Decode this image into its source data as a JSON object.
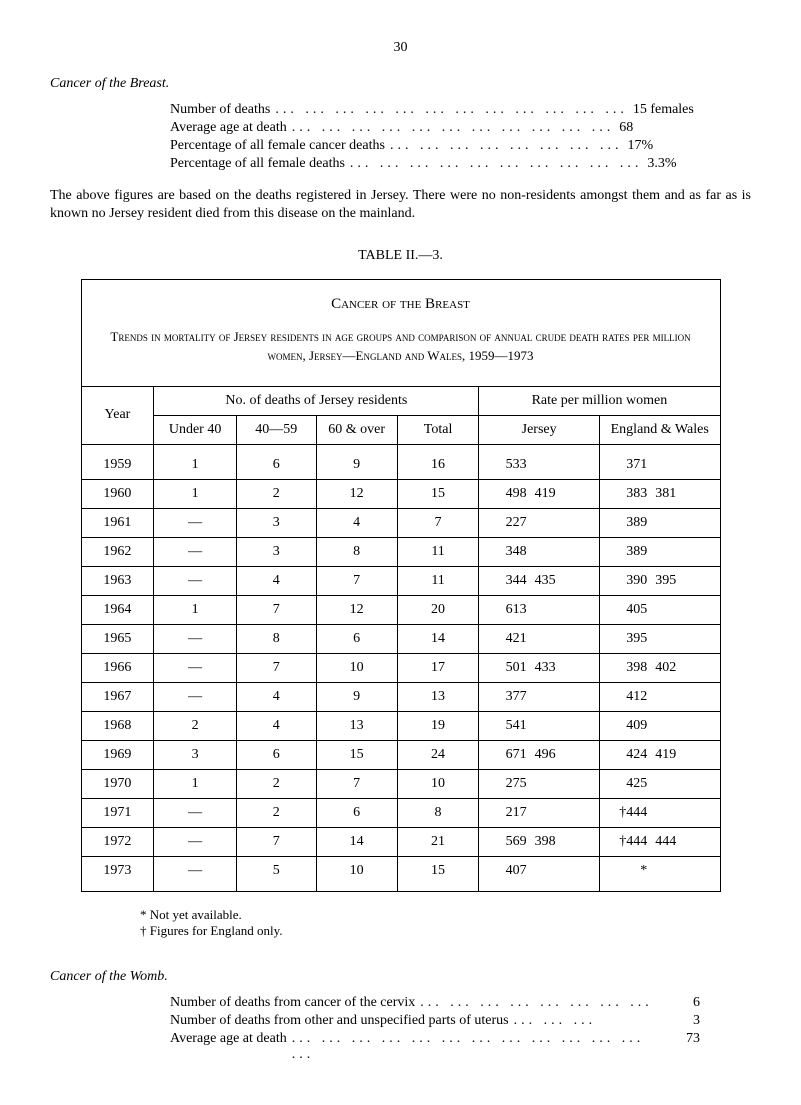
{
  "page_number": "30",
  "section1": {
    "title": "Cancer of the Breast.",
    "stats": [
      {
        "label": "Number of deaths",
        "dots": "... ... ... ... ... ... ... ... ... ... ... ...",
        "value": "15 females"
      },
      {
        "label": "Average age at death",
        "dots": "... ... ... ... ... ... ... ... ... ... ...",
        "value": "68"
      },
      {
        "label": "Percentage of all female cancer deaths",
        "dots": "... ... ... ... ... ... ... ...",
        "value": "17%"
      },
      {
        "label": "Percentage of all female deaths",
        "dots": "... ... ... ... ... ... ... ... ... ...",
        "value": "3.3%"
      }
    ],
    "paragraph": "The above figures are based on the deaths registered in Jersey. There were no non-residents amongst them and as far as is known no Jersey resident died from this disease on the mainland."
  },
  "table": {
    "title": "TABLE II.—3.",
    "header_title": "Cancer of the Breast",
    "subtitle": "Trends in mortality of Jersey residents in age groups and comparison of annual crude death rates per million women, Jersey—England and Wales, 1959—1973",
    "headers": {
      "year": "Year",
      "deaths_group": "No. of deaths of Jersey residents",
      "rate_group": "Rate per million women",
      "under40": "Under 40",
      "40_59": "40—59",
      "60over": "60 & over",
      "total": "Total",
      "jersey": "Jersey",
      "england": "England & Wales"
    },
    "rows": [
      {
        "year": "1959",
        "u40": "1",
        "c40_59": "6",
        "c60": "9",
        "total": "16",
        "jersey": "533",
        "jersey_agg": "",
        "ew": "371",
        "ew_agg": ""
      },
      {
        "year": "1960",
        "u40": "1",
        "c40_59": "2",
        "c60": "12",
        "total": "15",
        "jersey": "498",
        "jersey_agg": "419",
        "ew": "383",
        "ew_agg": "381"
      },
      {
        "year": "1961",
        "u40": "—",
        "c40_59": "3",
        "c60": "4",
        "total": "7",
        "jersey": "227",
        "jersey_agg": "",
        "ew": "389",
        "ew_agg": ""
      },
      {
        "year": "1962",
        "u40": "—",
        "c40_59": "3",
        "c60": "8",
        "total": "11",
        "jersey": "348",
        "jersey_agg": "",
        "ew": "389",
        "ew_agg": ""
      },
      {
        "year": "1963",
        "u40": "—",
        "c40_59": "4",
        "c60": "7",
        "total": "11",
        "jersey": "344",
        "jersey_agg": "435",
        "ew": "390",
        "ew_agg": "395"
      },
      {
        "year": "1964",
        "u40": "1",
        "c40_59": "7",
        "c60": "12",
        "total": "20",
        "jersey": "613",
        "jersey_agg": "",
        "ew": "405",
        "ew_agg": ""
      },
      {
        "year": "1965",
        "u40": "—",
        "c40_59": "8",
        "c60": "6",
        "total": "14",
        "jersey": "421",
        "jersey_agg": "",
        "ew": "395",
        "ew_agg": ""
      },
      {
        "year": "1966",
        "u40": "—",
        "c40_59": "7",
        "c60": "10",
        "total": "17",
        "jersey": "501",
        "jersey_agg": "433",
        "ew": "398",
        "ew_agg": "402"
      },
      {
        "year": "1967",
        "u40": "—",
        "c40_59": "4",
        "c60": "9",
        "total": "13",
        "jersey": "377",
        "jersey_agg": "",
        "ew": "412",
        "ew_agg": ""
      },
      {
        "year": "1968",
        "u40": "2",
        "c40_59": "4",
        "c60": "13",
        "total": "19",
        "jersey": "541",
        "jersey_agg": "",
        "ew": "409",
        "ew_agg": ""
      },
      {
        "year": "1969",
        "u40": "3",
        "c40_59": "6",
        "c60": "15",
        "total": "24",
        "jersey": "671",
        "jersey_agg": "496",
        "ew": "424",
        "ew_agg": "419"
      },
      {
        "year": "1970",
        "u40": "1",
        "c40_59": "2",
        "c60": "7",
        "total": "10",
        "jersey": "275",
        "jersey_agg": "",
        "ew": "425",
        "ew_agg": ""
      },
      {
        "year": "1971",
        "u40": "—",
        "c40_59": "2",
        "c60": "6",
        "total": "8",
        "jersey": "217",
        "jersey_agg": "",
        "ew": "†444",
        "ew_agg": ""
      },
      {
        "year": "1972",
        "u40": "—",
        "c40_59": "7",
        "c60": "14",
        "total": "21",
        "jersey": "569",
        "jersey_agg": "398",
        "ew": "†444",
        "ew_agg": "444"
      },
      {
        "year": "1973",
        "u40": "—",
        "c40_59": "5",
        "c60": "10",
        "total": "15",
        "jersey": "407",
        "jersey_agg": "",
        "ew": "*",
        "ew_agg": ""
      }
    ],
    "footnotes": [
      "* Not yet available.",
      "† Figures for England only."
    ]
  },
  "section2": {
    "title": "Cancer of the Womb.",
    "stats": [
      {
        "label": "Number of deaths from cancer of the cervix",
        "dots": "... ... ... ... ... ... ... ...",
        "value": "6"
      },
      {
        "label": "Number of deaths from other and unspecified parts of uterus",
        "dots": "... ... ...",
        "value": "3"
      },
      {
        "label": "Average age at death",
        "dots": "... ... ... ... ... ... ... ... ... ... ... ... ...",
        "value": "73"
      }
    ]
  }
}
